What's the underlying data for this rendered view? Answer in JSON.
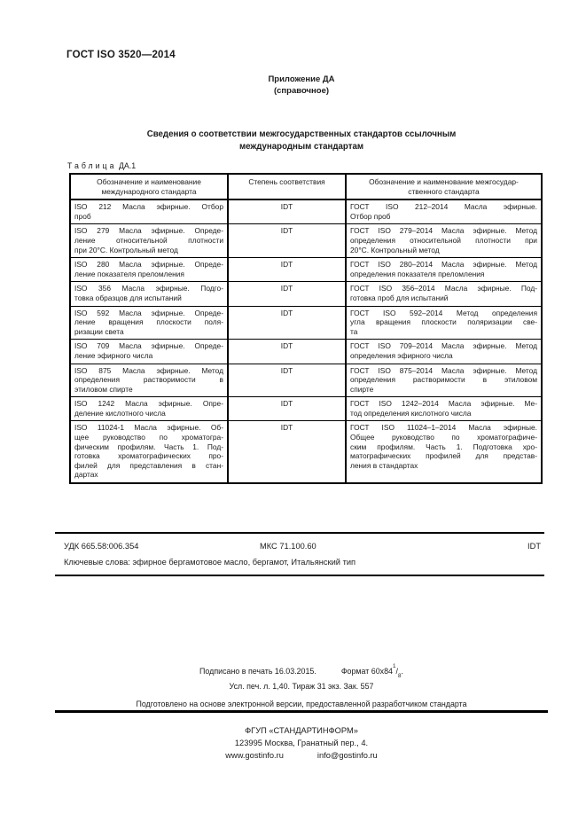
{
  "page": {
    "doc_number": "ГОСТ ISO 3520—2014",
    "annex_label": "Приложение ДА",
    "annex_type": "(справочное)",
    "title_line1": "Сведения о соответствии межгосударственных стандартов ссылочным",
    "title_line2": "международным стандартам",
    "table_label_word": "Таблица",
    "table_label_number": "ДА.1"
  },
  "table": {
    "header": {
      "col1": [
        "Обозначение и наименование",
        "международного стандарта"
      ],
      "col2": [
        "Степень соответствия"
      ],
      "col3": [
        "Обозначение и наименование межгосудар-",
        "ственного стандарта"
      ]
    },
    "rows": [
      {
        "international": [
          "ISO 212 Масла эфирные. Отбор",
          "проб"
        ],
        "degree": "IDT",
        "interstate": [
          "ГОСТ ISO 212–2014 Масла эфирные.",
          "Отбор проб"
        ]
      },
      {
        "international": [
          "ISO 279 Масла эфирные. Опреде-",
          "ление относительной плотности",
          "при 20°С. Контрольный метод"
        ],
        "degree": "IDT",
        "interstate": [
          "ГОСТ ISO 279–2014 Масла эфирные. Метод",
          "определения относительной плотности при",
          "20°С. Контрольный метод"
        ]
      },
      {
        "international": [
          "ISO 280 Масла эфирные. Опреде-",
          "ление показателя преломления"
        ],
        "degree": "IDT",
        "interstate": [
          "ГОСТ ISO 280–2014 Масла эфирные. Метод",
          "определения показателя преломления"
        ]
      },
      {
        "international": [
          "ISO 356 Масла эфирные. Подго-",
          "товка образцов для испытаний"
        ],
        "degree": "IDT",
        "interstate": [
          "ГОСТ ISO 356–2014 Масла эфирные. Под-",
          "готовка проб для испытаний"
        ]
      },
      {
        "international": [
          "ISO 592 Масла эфирные. Опреде-",
          "ление вращения плоскости поля-",
          "ризации света"
        ],
        "degree": "IDT",
        "interstate": [
          "ГОСТ ISO 592–2014 Метод определения",
          "угла вращения плоскости поляризации све-",
          "та"
        ]
      },
      {
        "international": [
          "ISO 709 Масла эфирные. Опреде-",
          "ление эфирного числа"
        ],
        "degree": "IDT",
        "interstate": [
          "ГОСТ ISO 709–2014 Масла эфирные. Метод",
          "определения эфирного числа"
        ]
      },
      {
        "international": [
          "ISO 875 Масла эфирные. Метод",
          "определения растворимости в",
          "этиловом спирте"
        ],
        "degree": "IDT",
        "interstate": [
          "ГОСТ ISO 875–2014 Масла эфирные. Метод",
          "определения растворимости в этиловом",
          "спирте"
        ]
      },
      {
        "international": [
          "ISO 1242 Масла эфирные. Опре-",
          "деление кислотного числа"
        ],
        "degree": "IDT",
        "interstate": [
          "ГОСТ ISO 1242–2014 Масла эфирные. Ме-",
          "тод определения кислотного числа"
        ]
      },
      {
        "international": [
          "ISO 11024-1 Масла эфирные. Об-",
          "щее руководство по хроматогра-",
          "фическим профилям. Часть 1. Под-",
          "готовка хроматографических про-",
          "филей для представления в стан-",
          "дартах"
        ],
        "degree": "IDT",
        "interstate": [
          "ГОСТ ISO 11024–1–2014 Масла эфирные.",
          "Общее руководство по хроматографиче-",
          "ским профилям. Часть 1. Подготовка хро-",
          "матографических профилей для представ-",
          "ления в стандартах"
        ]
      }
    ]
  },
  "footer": {
    "udk": "УДК 665.58:006.354",
    "mks": "МКС 71.100.60",
    "idt": "IDT",
    "keywords": "Ключевые слова: эфирное бергамотовое масло, бергамот, Итальянский тип",
    "print_line1_left": "Подписано в печать 16.03.2015.",
    "format_label": "Формат 60х84",
    "format_frac_num": "1",
    "format_frac_slash": "/",
    "format_frac_den": "8",
    "format_period": ".",
    "print_line2": "Усл. печ. л. 1,40. Тираж 31 экз. Зак. 557",
    "prepared": "Подготовлено на основе электронной версии, предоставленной разработчиком стандарта",
    "publisher": "ФГУП «СТАНДАРТИНФОРМ»",
    "address": "123995 Москва, Гранатный пер., 4.",
    "website": "www.gostinfo.ru",
    "email": "info@gostinfo.ru"
  }
}
